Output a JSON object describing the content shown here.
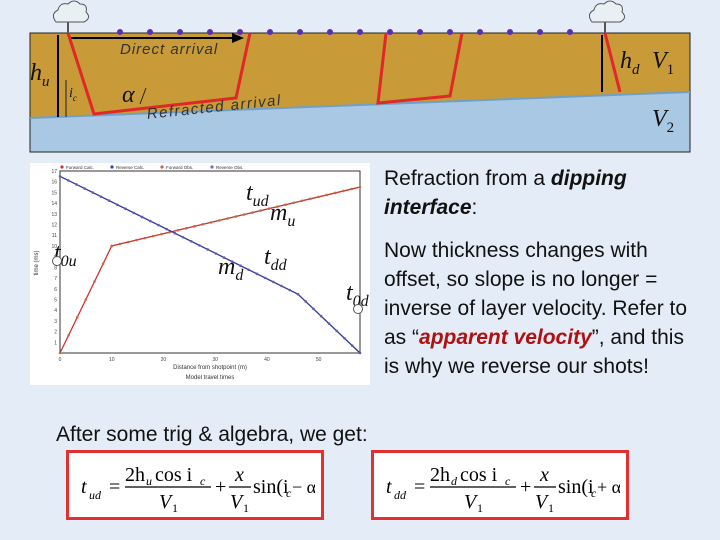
{
  "diagram": {
    "direct_label": "Direct arrival",
    "refracted_label": "Refracted arrival",
    "layer1_velocity": "V",
    "layer1_velocity_sub": "1",
    "layer2_velocity": "V",
    "layer2_velocity_sub": "2",
    "hu": "h",
    "hu_sub": "u",
    "hd": "h",
    "hd_sub": "d",
    "ic": "i",
    "ic_sub": "c",
    "alpha": "α",
    "colors": {
      "layer1": "#c89a38",
      "layer2": "#a8c8e4",
      "interface": "#6fa0c8",
      "ray": "#e02828",
      "direct_ray": "#000000",
      "receiver": "#5e2db8"
    }
  },
  "graph": {
    "caption": "Model travel times",
    "xlabel": "Distance from shotpoint (m)",
    "ylabel": "time (ms)",
    "legend": [
      "Forward Calc.",
      "Reverse Calc.",
      "Forward Obs.",
      "Reverse Obs."
    ],
    "ytick_labels": [
      "17",
      "16",
      "15",
      "14",
      "13",
      "12",
      "11",
      "10",
      "9",
      "8",
      "7",
      "6",
      "5",
      "4",
      "3",
      "2",
      "1"
    ],
    "xtick_labels": [
      "0",
      "10",
      "20",
      "30",
      "40",
      "50"
    ],
    "annotations": {
      "t0u": "t",
      "t0u_sub": "0u",
      "tud": "t",
      "tud_sub": "ud",
      "mu": "m",
      "mu_sub": "u",
      "md": "m",
      "md_sub": "d",
      "tdd": "t",
      "tdd_sub": "dd",
      "t0d": "t",
      "t0d_sub": "0d"
    }
  },
  "chart_data": {
    "type": "line",
    "title": "",
    "xlabel": "Distance from shotpoint (m)",
    "ylabel": "time (ms)",
    "xlim": [
      0,
      58
    ],
    "ylim": [
      0,
      17
    ],
    "series": [
      {
        "name": "Forward Calc.",
        "x": [
          0,
          10,
          58
        ],
        "y": [
          0,
          10,
          15.5
        ]
      },
      {
        "name": "Reverse Calc.",
        "x": [
          0,
          46,
          58
        ],
        "y": [
          16.5,
          5.5,
          0
        ]
      }
    ]
  },
  "text": {
    "heading_pre": "Refraction from a ",
    "heading_em": "dipping interface",
    "heading_post": ":",
    "body1": "Now thickness changes with offset, so slope is no longer = inverse of layer velocity. Refer to as “",
    "body_em": "apparent velocity",
    "body2": "”, and this is why we reverse our shots!",
    "after": "After some trig & algebra, we get:"
  },
  "equations": {
    "left": {
      "lhs": "t",
      "lhs_sub": "ud",
      "num1": "2h",
      "num1_sub": "u",
      "num1_rest": "cos i",
      "num1_rest_sub": "c",
      "den1": "V",
      "den1_sub": "1",
      "num2": "x",
      "den2": "V",
      "den2_sub": "1",
      "tail": "sin(i",
      "tail_sub": "c",
      "tail_rest": " − α)"
    },
    "right": {
      "lhs": "t",
      "lhs_sub": "dd",
      "num1": "2h",
      "num1_sub": "d",
      "num1_rest": "cos i",
      "num1_rest_sub": "c",
      "den1": "V",
      "den1_sub": "1",
      "num2": "x",
      "den2": "V",
      "den2_sub": "1",
      "tail": "sin(i",
      "tail_sub": "c",
      "tail_rest": " + α)"
    }
  }
}
